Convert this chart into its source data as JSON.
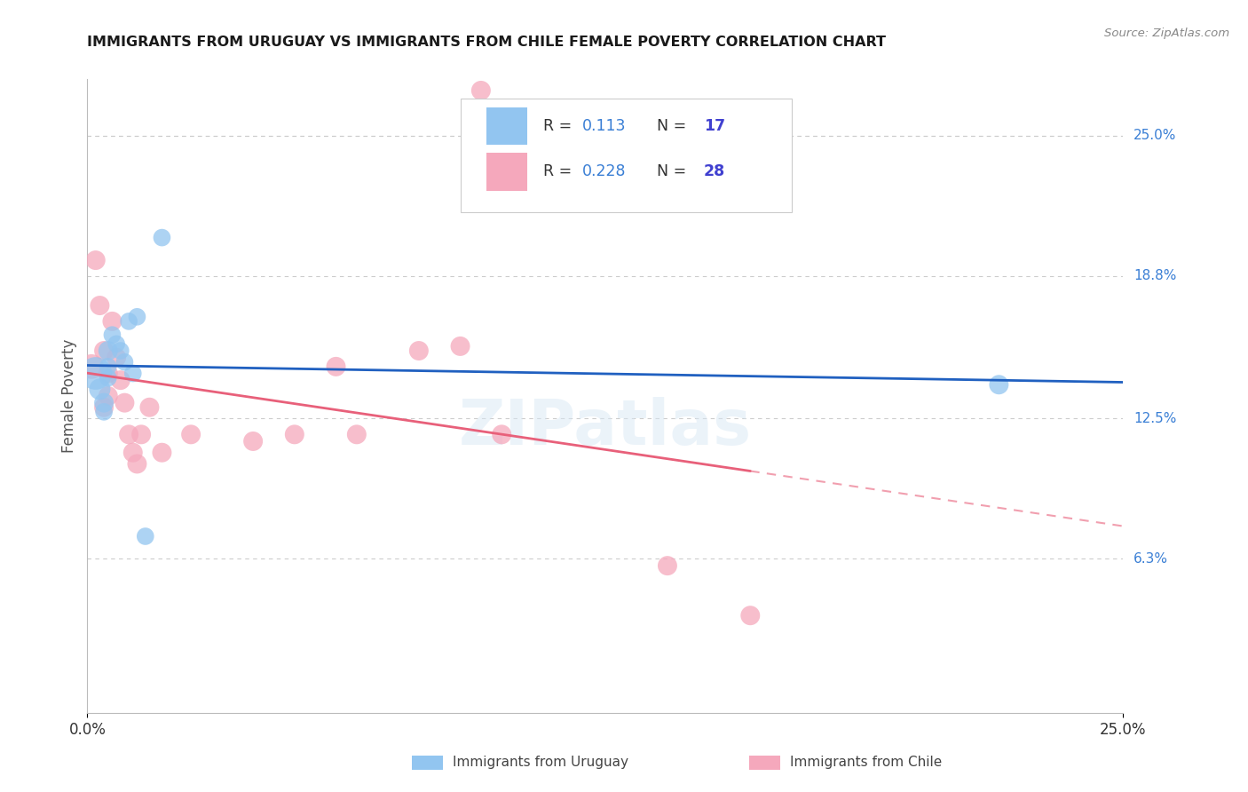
{
  "title": "IMMIGRANTS FROM URUGUAY VS IMMIGRANTS FROM CHILE FEMALE POVERTY CORRELATION CHART",
  "source": "Source: ZipAtlas.com",
  "ylabel": "Female Poverty",
  "ytick_labels": [
    "25.0%",
    "18.8%",
    "12.5%",
    "6.3%"
  ],
  "ytick_positions": [
    0.25,
    0.188,
    0.125,
    0.063
  ],
  "xlim": [
    0.0,
    0.25
  ],
  "ylim": [
    -0.005,
    0.275
  ],
  "legend_r_uruguay": "0.113",
  "legend_n_uruguay": "17",
  "legend_r_chile": "0.228",
  "legend_n_chile": "28",
  "color_uruguay": "#92c5f0",
  "color_chile": "#f5a8bc",
  "color_uruguay_line": "#2060c0",
  "color_chile_line": "#e8607a",
  "color_text_blue": "#3a7fd5",
  "color_n_blue": "#4040d0",
  "background_color": "#ffffff",
  "grid_color": "#cccccc",
  "uruguay_x": [
    0.002,
    0.003,
    0.004,
    0.004,
    0.005,
    0.005,
    0.005,
    0.006,
    0.007,
    0.008,
    0.009,
    0.01,
    0.011,
    0.012,
    0.014,
    0.018,
    0.22
  ],
  "uruguay_y": [
    0.145,
    0.138,
    0.132,
    0.128,
    0.155,
    0.148,
    0.143,
    0.162,
    0.158,
    0.155,
    0.15,
    0.168,
    0.145,
    0.17,
    0.073,
    0.205,
    0.14
  ],
  "uruguay_size": [
    700,
    300,
    250,
    200,
    250,
    200,
    200,
    200,
    200,
    200,
    200,
    200,
    200,
    200,
    200,
    200,
    250
  ],
  "chile_x": [
    0.001,
    0.002,
    0.003,
    0.004,
    0.004,
    0.005,
    0.005,
    0.006,
    0.007,
    0.008,
    0.009,
    0.01,
    0.011,
    0.012,
    0.013,
    0.015,
    0.018,
    0.025,
    0.04,
    0.05,
    0.06,
    0.065,
    0.08,
    0.09,
    0.095,
    0.1,
    0.14,
    0.16
  ],
  "chile_y": [
    0.148,
    0.195,
    0.175,
    0.155,
    0.13,
    0.145,
    0.135,
    0.168,
    0.152,
    0.142,
    0.132,
    0.118,
    0.11,
    0.105,
    0.118,
    0.13,
    0.11,
    0.118,
    0.115,
    0.118,
    0.148,
    0.118,
    0.155,
    0.157,
    0.27,
    0.118,
    0.06,
    0.038
  ],
  "chile_size": [
    400,
    250,
    250,
    250,
    250,
    250,
    250,
    250,
    250,
    250,
    250,
    250,
    250,
    250,
    250,
    250,
    250,
    250,
    250,
    250,
    250,
    250,
    250,
    250,
    250,
    250,
    250,
    250
  ]
}
